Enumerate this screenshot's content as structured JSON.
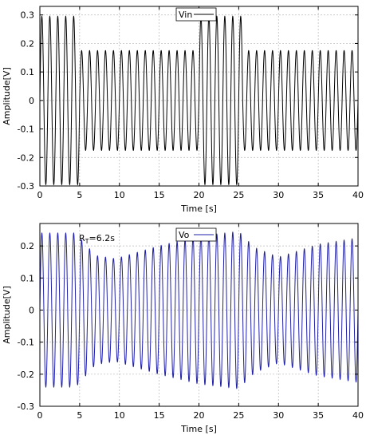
{
  "chart_data": [
    {
      "type": "line",
      "xlabel": "Time [s]",
      "ylabel": "Amplitude[V]",
      "xlim": [
        0,
        40
      ],
      "ylim": [
        -0.3,
        0.33
      ],
      "x_ticks": [
        "0",
        "5",
        "10",
        "15",
        "20",
        "25",
        "30",
        "35",
        "40"
      ],
      "y_ticks": [
        "0.3",
        "0.2",
        "0.1",
        "0",
        "-0.1",
        "-0.2",
        "-0.3"
      ],
      "grid": true,
      "legend_position": "top-center",
      "series": [
        {
          "name": "Vin",
          "color": "#000000",
          "kind": "sinusoid",
          "frequency_hz": 1.0,
          "amplitude_segments": [
            {
              "t_start": 0,
              "t_end": 5,
              "amplitude": 0.295
            },
            {
              "t_start": 5,
              "t_end": 20,
              "amplitude": 0.175
            },
            {
              "t_start": 20,
              "t_end": 25.5,
              "amplitude": 0.295
            },
            {
              "t_start": 25.5,
              "t_end": 40,
              "amplitude": 0.175
            }
          ]
        }
      ]
    },
    {
      "type": "line",
      "xlabel": "Time [s]",
      "ylabel": "Amplitude[V]",
      "xlim": [
        0,
        40
      ],
      "ylim": [
        -0.3,
        0.27
      ],
      "x_ticks": [
        "0",
        "5",
        "10",
        "15",
        "20",
        "25",
        "30",
        "35",
        "40"
      ],
      "y_ticks": [
        "0.2",
        "0.1",
        "0",
        "-0.1",
        "-0.2",
        "-0.3"
      ],
      "grid": true,
      "legend_position": "top-center",
      "annotation": {
        "text_main": "R",
        "text_sub": "T",
        "text_rest": "=6.2s"
      },
      "series": [
        {
          "name": "Vo",
          "color": "#1f1fa8",
          "kind": "sinusoid",
          "frequency_hz": 1.0,
          "envelope_points": [
            {
              "t": 0,
              "amplitude": 0.24
            },
            {
              "t": 4.5,
              "amplitude": 0.24
            },
            {
              "t": 7,
              "amplitude": 0.17
            },
            {
              "t": 9.5,
              "amplitude": 0.16
            },
            {
              "t": 15,
              "amplitude": 0.2
            },
            {
              "t": 20,
              "amplitude": 0.23
            },
            {
              "t": 25,
              "amplitude": 0.245
            },
            {
              "t": 27,
              "amplitude": 0.195
            },
            {
              "t": 30,
              "amplitude": 0.165
            },
            {
              "t": 35,
              "amplitude": 0.205
            },
            {
              "t": 40,
              "amplitude": 0.225
            }
          ]
        }
      ]
    }
  ]
}
